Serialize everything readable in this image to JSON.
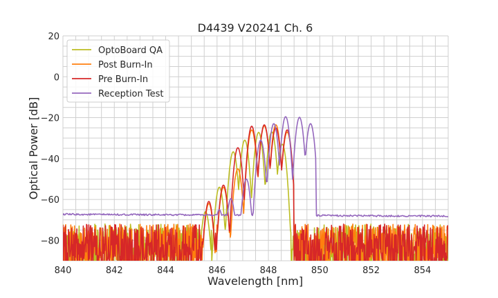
{
  "chart_data": {
    "type": "line",
    "title": "D4439 V20241 Ch. 6",
    "xlabel": "Wavelength [nm]",
    "ylabel": "Optical Power [dB]",
    "xlim": [
      840,
      855
    ],
    "ylim": [
      -90,
      20
    ],
    "xticks": [
      840,
      842,
      844,
      846,
      848,
      850,
      852,
      854
    ],
    "yticks": [
      20,
      0,
      -20,
      -40,
      -60,
      -80
    ],
    "grid": true,
    "legend_position": "top-left",
    "series": [
      {
        "name": "OptoBoard QA",
        "color": "#bcbd22",
        "noise_floor": [
          -90,
          -72
        ],
        "band": [
          845.3,
          848.86
        ],
        "peaks": [
          [
            845.55,
            -66
          ],
          [
            846.09,
            -54
          ],
          [
            846.63,
            -36.7
          ],
          [
            847.08,
            -31
          ],
          [
            847.62,
            -27.2
          ],
          [
            848.13,
            -27
          ],
          [
            848.54,
            -33
          ]
        ]
      },
      {
        "name": "Post Burn-In",
        "color": "#ff7f0e",
        "noise_floor": [
          -90,
          -72
        ],
        "band": [
          845.4,
          849.0
        ],
        "peaks": [
          [
            845.68,
            -62
          ],
          [
            846.25,
            -54
          ],
          [
            846.81,
            -45
          ],
          [
            847.35,
            -26
          ],
          [
            847.84,
            -24
          ],
          [
            848.29,
            -23.5
          ],
          [
            848.73,
            -27
          ]
        ]
      },
      {
        "name": "Pre Burn-In",
        "color": "#d62728",
        "noise_floor": [
          -90,
          -72
        ],
        "band": [
          845.4,
          849.0
        ],
        "peaks": [
          [
            845.68,
            -61
          ],
          [
            846.25,
            -53
          ],
          [
            846.81,
            -34.7
          ],
          [
            847.35,
            -24.2
          ],
          [
            847.84,
            -23.5
          ],
          [
            848.29,
            -25
          ],
          [
            848.73,
            -26
          ]
        ]
      },
      {
        "name": "Reception Test",
        "color": "#9467bd",
        "noise_floor": [
          -67.3,
          -68.2
        ],
        "band": [
          845.8,
          849.86
        ],
        "peaks": [
          [
            846.09,
            -65
          ],
          [
            846.54,
            -59.6
          ],
          [
            847.14,
            -50
          ],
          [
            847.7,
            -31
          ],
          [
            848.21,
            -22.9
          ],
          [
            848.67,
            -19.5
          ],
          [
            849.21,
            -19.8
          ],
          [
            849.64,
            -22.9
          ]
        ]
      }
    ]
  }
}
